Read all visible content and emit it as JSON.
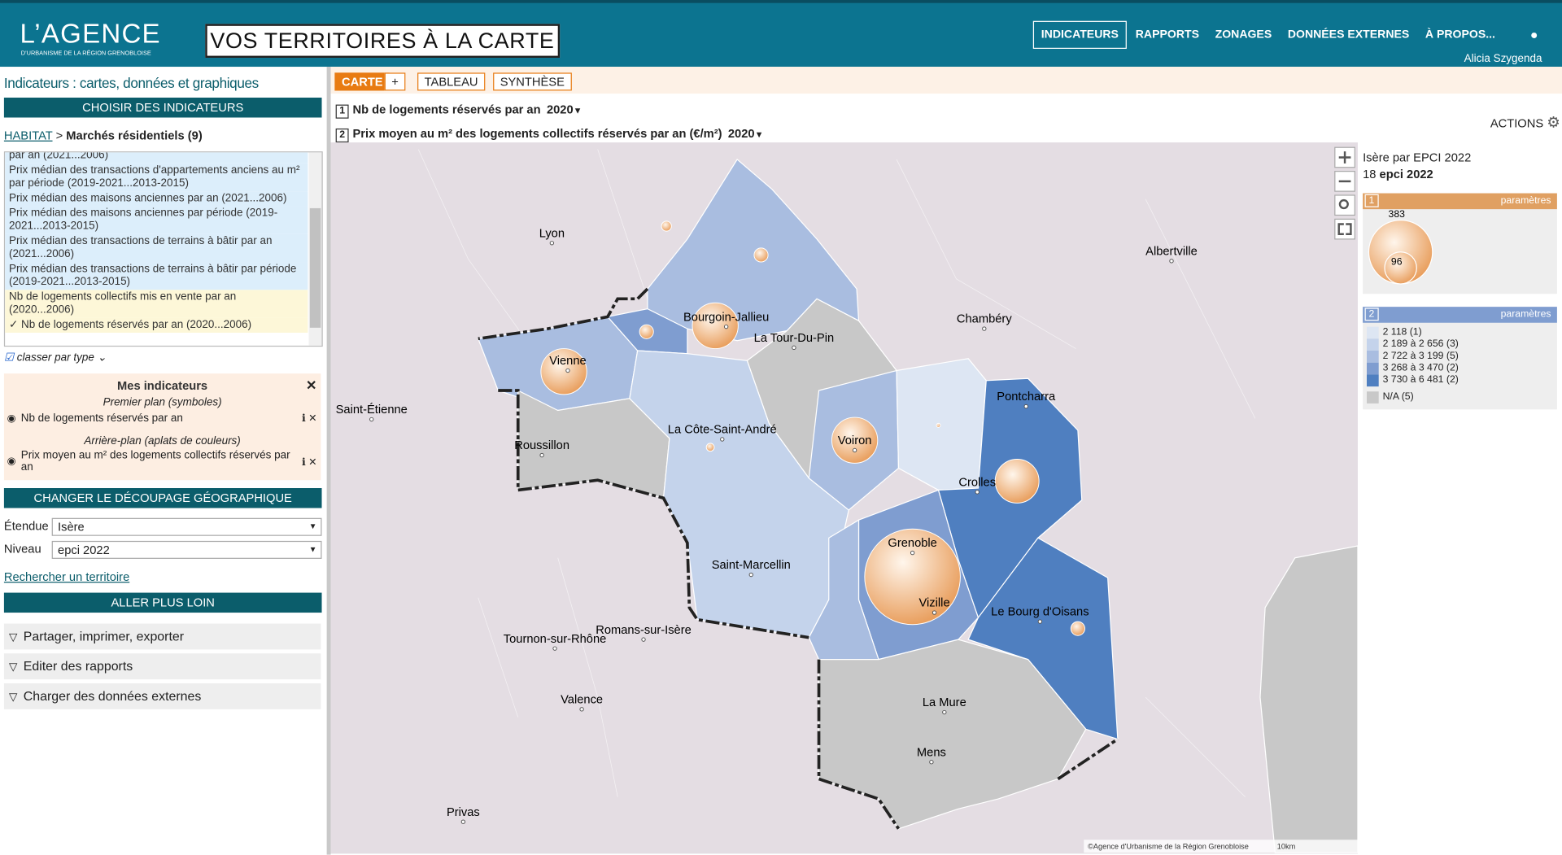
{
  "header": {
    "logo": "L’AGENCE",
    "logo_sub": "D’URBANISME DE LA RÉGION GRENOBLOISE",
    "app_title": "VOS TERRITOIRES À LA CARTE",
    "nav": [
      "INDICATEURS",
      "RAPPORTS",
      "ZONAGES",
      "DONNÉES EXTERNES",
      "À PROPOS..."
    ],
    "user": "Alicia Szygenda"
  },
  "sidebar": {
    "title": "Indicateurs : cartes, données et graphiques",
    "choose_button": "CHOISIR DES INDICATEURS",
    "breadcrumb": {
      "root": "HABITAT",
      "sep": ">",
      "current": "Marchés résidentiels (9)"
    },
    "indicator_list": [
      {
        "label": "par an (2021...2006)",
        "color": "#dceefb"
      },
      {
        "label": "Prix médian des transactions d'appartements anciens au m² par période (2019-2021...2013-2015)",
        "color": "#dceefb"
      },
      {
        "label": "Prix médian des maisons anciennes par an (2021...2006)",
        "color": "#dceefb"
      },
      {
        "label": "Prix médian des maisons anciennes par période (2019-2021...2013-2015)",
        "color": "#dceefb"
      },
      {
        "label": "Prix médian des transactions de terrains à bâtir par an (2021...2006)",
        "color": "#dceefb"
      },
      {
        "label": "Prix médian des transactions de terrains à bâtir par période (2019-2021...2013-2015)",
        "color": "#dceefb"
      },
      {
        "label": "Nb de logements collectifs mis en vente par an (2020...2006)",
        "color": "#fdf7d8"
      },
      {
        "label": "✓ Nb de logements réservés par an (2020...2006)",
        "color": "#fdf7d8"
      }
    ],
    "classer": "classer par type",
    "my_indicators": {
      "title": "Mes indicateurs",
      "foreground_label": "Premier plan (symboles)",
      "foreground_item": "Nb de logements réservés par an",
      "background_label": "Arrière-plan (aplats de couleurs)",
      "background_item": "Prix moyen au m² des logements collectifs réservés par an"
    },
    "change_button": "CHANGER LE DÉCOUPAGE GÉOGRAPHIQUE",
    "fields": [
      {
        "label": "Étendue",
        "value": "Isère"
      },
      {
        "label": "Niveau",
        "value": "epci 2022"
      }
    ],
    "search_link": "Rechercher un territoire",
    "further_button": "ALLER PLUS LOIN",
    "accordions": [
      "Partager, imprimer, exporter",
      "Editer des rapports",
      "Charger des données externes"
    ]
  },
  "main": {
    "tabs": [
      "CARTE",
      "+",
      "TABLEAU",
      "SYNTHÈSE"
    ],
    "indicators": [
      {
        "num": "1",
        "label": "Nb de logements réservés par an",
        "year": "2020"
      },
      {
        "num": "2",
        "label": "Prix moyen au m² des logements collectifs réservés par an (€/m²)",
        "year": "2020"
      }
    ],
    "actions": "ACTIONS"
  },
  "map": {
    "places": [
      "Lyon",
      "Albertville",
      "Bourgoin-Jallieu",
      "Chambéry",
      "La Tour-Du-Pin",
      "Vienne",
      "Saint-Étienne",
      "Pontcharra",
      "La Côte-Saint-André",
      "Voiron",
      "Roussillon",
      "Crolles",
      "Grenoble",
      "Saint-Marcellin",
      "Vizille",
      "Le Bourg d'Oisans",
      "Romans-sur-Isère",
      "Tournon-sur-Rhône",
      "Valence",
      "La Mure",
      "Mens",
      "Privas"
    ],
    "attribution": "©Agence d'Urbanisme de la Région Grenobloise",
    "scale": "10km"
  },
  "legend": {
    "title": "Isère par EPCI 2022",
    "count": "18",
    "count_unit": "epci 2022",
    "panel1": {
      "num": "1",
      "params": "paramètres",
      "values": [
        383,
        96
      ]
    },
    "panel2": {
      "num": "2",
      "params": "paramètres",
      "classes": [
        {
          "label": "2 118 (1)",
          "color": "#dde6f3"
        },
        {
          "label": "2 189 à 2 656 (3)",
          "color": "#c4d3eb"
        },
        {
          "label": "2 722 à 3 199 (5)",
          "color": "#a9bde0"
        },
        {
          "label": "3 268 à 3 470 (2)",
          "color": "#7f9dd0"
        },
        {
          "label": "3 730 à 6 481 (2)",
          "color": "#4f7fc0"
        },
        {
          "label": "N/A (5)",
          "color": "#c8c8c8"
        }
      ]
    }
  }
}
